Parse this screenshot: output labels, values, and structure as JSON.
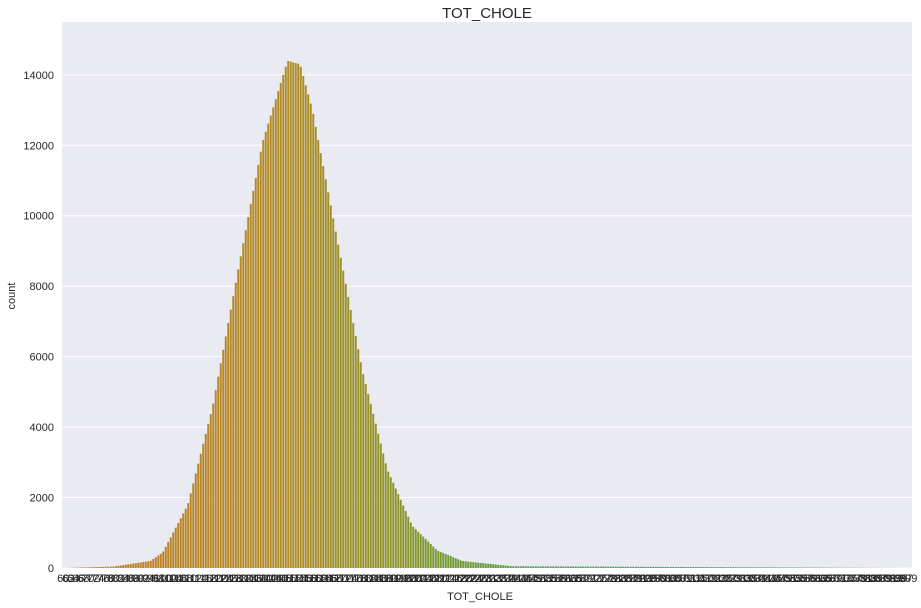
{
  "chart_data": {
    "type": "bar",
    "title": "TOT_CHOLE",
    "xlabel": "TOT_CHOLE",
    "ylabel": "count",
    "ylim": [
      0,
      15500
    ],
    "yticks": [
      0,
      2000,
      4000,
      6000,
      8000,
      10000,
      12000,
      14000
    ],
    "grid": "horizontal",
    "background_color": "#eaeaf2",
    "grid_color": "#ffffff",
    "palette_note": "per-category colors from orange/brown through olive and green to teal",
    "x_range": [
      60,
      400
    ],
    "category_count": 340,
    "distribution": {
      "shape": "approximately normal",
      "peak_x": 151,
      "peak_count": 14500,
      "sample_points": [
        {
          "x": 60,
          "count": 0
        },
        {
          "x": 80,
          "count": 40
        },
        {
          "x": 95,
          "count": 200
        },
        {
          "x": 100,
          "count": 450
        },
        {
          "x": 110,
          "count": 1800
        },
        {
          "x": 120,
          "count": 4600
        },
        {
          "x": 130,
          "count": 8400
        },
        {
          "x": 140,
          "count": 12100
        },
        {
          "x": 150,
          "count": 14400
        },
        {
          "x": 155,
          "count": 14300
        },
        {
          "x": 160,
          "count": 13000
        },
        {
          "x": 170,
          "count": 9300
        },
        {
          "x": 180,
          "count": 5600
        },
        {
          "x": 190,
          "count": 2800
        },
        {
          "x": 200,
          "count": 1200
        },
        {
          "x": 210,
          "count": 500
        },
        {
          "x": 220,
          "count": 200
        },
        {
          "x": 240,
          "count": 50
        },
        {
          "x": 400,
          "count": 0
        }
      ]
    }
  }
}
